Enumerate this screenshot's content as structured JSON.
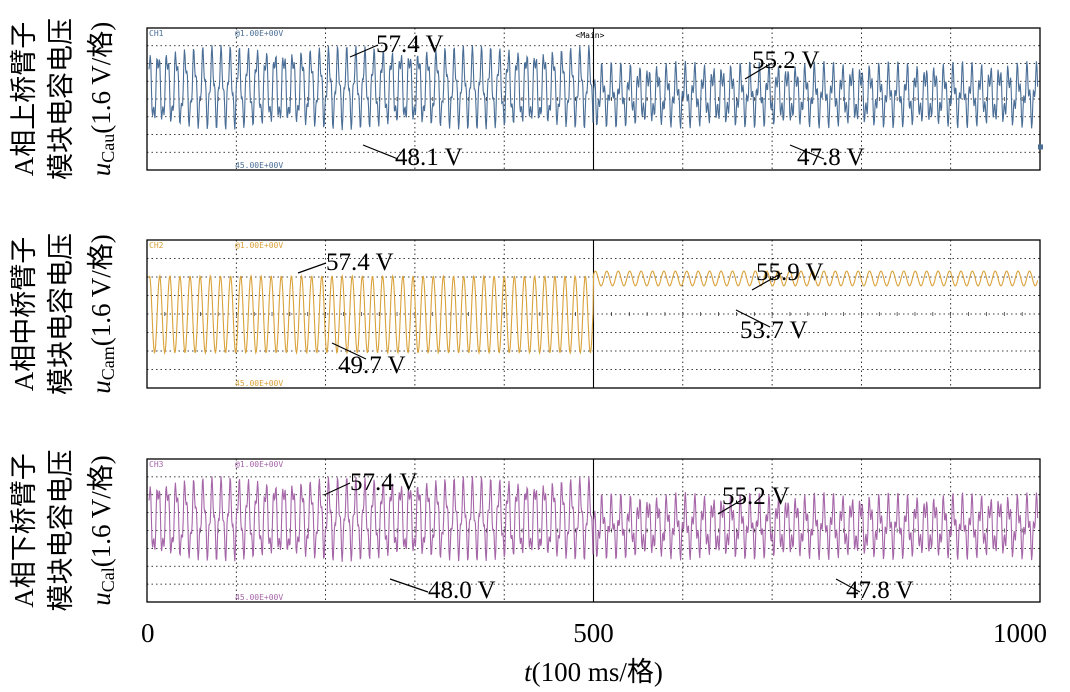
{
  "chart_data": [
    {
      "type": "line",
      "color": "#4a6e96",
      "ylabel_cn": [
        "A相上桥臂子",
        "模块电容电压"
      ],
      "ylabel_sym": "u",
      "ylabel_sub": "Cau",
      "ylabel_scale": "(1.6 V/格)",
      "scope_channel": "CH1",
      "scope_offset": "@1.00E+00V",
      "scope_level": "45.00E+00V",
      "scope_tag": "<Main>",
      "before": {
        "max": 57.4,
        "min": 48.1
      },
      "after": {
        "max": 55.2,
        "min": 47.8
      },
      "annotations": [
        "57.4 V",
        "48.1 V",
        "55.2 V",
        "47.8 V"
      ]
    },
    {
      "type": "line",
      "color": "#d9a23a",
      "ylabel_cn": [
        "A相中桥臂子",
        "模块电容电压"
      ],
      "ylabel_sym": "u",
      "ylabel_sub": "Cam",
      "ylabel_scale": "(1.6 V/格)",
      "scope_channel": "CH2",
      "scope_offset": "@1.00E+00V",
      "scope_level": "45.00E+00V",
      "before": {
        "max": 57.4,
        "min": 49.7
      },
      "after": {
        "max": 55.9,
        "min": 53.7
      },
      "annotations": [
        "57.4 V",
        "49.7 V",
        "55.9 V",
        "53.7 V"
      ]
    },
    {
      "type": "line",
      "color": "#a566a8",
      "ylabel_cn": [
        "A相下桥臂子",
        "模块电容电压"
      ],
      "ylabel_sym": "u",
      "ylabel_sub": "Cal",
      "ylabel_scale": "(1.6 V/格)",
      "scope_channel": "CH3",
      "scope_offset": "@1.00E+00V",
      "scope_level": "45.00E+00V",
      "before": {
        "max": 57.4,
        "min": 48.0
      },
      "after": {
        "max": 55.2,
        "min": 47.8
      },
      "annotations": [
        "57.4 V",
        "48.0 V",
        "55.2 V",
        "47.8 V"
      ]
    }
  ],
  "xaxis": {
    "ticks": [
      "0",
      "500",
      "1000"
    ],
    "tick_values": [
      0,
      500,
      1000
    ],
    "xlim": [
      0,
      1000
    ],
    "label_sym": "t",
    "label_rest": "(100 ms/格)"
  },
  "grid": true
}
